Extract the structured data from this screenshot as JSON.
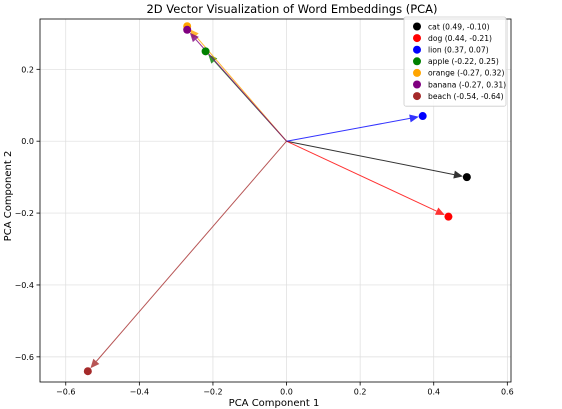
{
  "chart_data": {
    "type": "scatter",
    "title": "2D Vector Visualization of Word Embeddings (PCA)",
    "xlabel": "PCA Component 1",
    "ylabel": "PCA Component 2",
    "xlim": [
      -0.67,
      0.61
    ],
    "ylim": [
      -0.67,
      0.34
    ],
    "xticks": [
      -0.6,
      -0.4,
      -0.2,
      0.0,
      0.2,
      0.4,
      0.6
    ],
    "yticks": [
      -0.6,
      -0.4,
      -0.2,
      0.0,
      0.2
    ],
    "xtick_labels": [
      "−0.6",
      "−0.4",
      "−0.2",
      "0.0",
      "0.2",
      "0.4",
      "0.6"
    ],
    "ytick_labels": [
      "−0.6",
      "−0.4",
      "−0.2",
      "0.0",
      "0.2"
    ],
    "grid": true,
    "legend_position": "top-right",
    "origin": [
      0,
      0
    ],
    "points": [
      {
        "word": "cat",
        "x": 0.49,
        "y": -0.1,
        "color": "#000000",
        "arrow_color": "#000000",
        "legend": "cat (0.49, -0.10)"
      },
      {
        "word": "dog",
        "x": 0.44,
        "y": -0.21,
        "color": "#ff0000",
        "arrow_color": "#ff0000",
        "legend": "dog (0.44, -0.21)"
      },
      {
        "word": "lion",
        "x": 0.37,
        "y": 0.07,
        "color": "#0000ff",
        "arrow_color": "#0000ff",
        "legend": "lion (0.37, 0.07)"
      },
      {
        "word": "apple",
        "x": -0.22,
        "y": 0.25,
        "color": "#008000",
        "arrow_color": "#008000",
        "legend": "apple (-0.22, 0.25)"
      },
      {
        "word": "orange",
        "x": -0.27,
        "y": 0.32,
        "color": "#ffa500",
        "arrow_color": "#ffa500",
        "legend": "orange (-0.27, 0.32)"
      },
      {
        "word": "banana",
        "x": -0.27,
        "y": 0.31,
        "color": "#800080",
        "arrow_color": "#800080",
        "legend": "banana (-0.27, 0.31)"
      },
      {
        "word": "beach",
        "x": -0.54,
        "y": -0.64,
        "color": "#a52a2a",
        "arrow_color": "#a52a2a",
        "legend": "beach (-0.54, -0.64)"
      }
    ]
  }
}
